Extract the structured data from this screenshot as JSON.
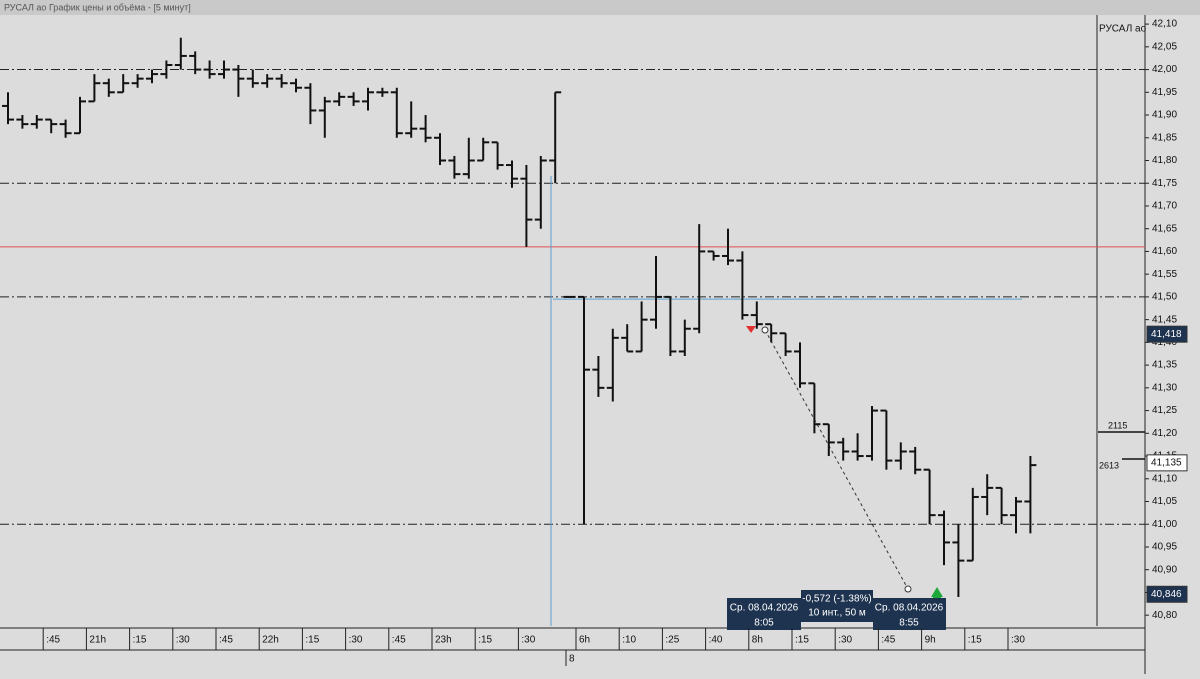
{
  "window_title": "РУСАЛ ао График цены и объёма - [5 минут]",
  "chart_data": {
    "type": "ohlc",
    "legend": "РУСАЛ ао",
    "color": "#111111",
    "categories": [
      null,
      null,
      null,
      ":45",
      null,
      null,
      "21h",
      null,
      null,
      ":15",
      null,
      null,
      ":30",
      null,
      null,
      ":45",
      null,
      null,
      "22h",
      null,
      null,
      ":15",
      null,
      null,
      ":30",
      null,
      null,
      ":45",
      null,
      null,
      "23h",
      null,
      null,
      ":15",
      null,
      null,
      ":30",
      null,
      null,
      null,
      "6h",
      null,
      null,
      ":10",
      null,
      null,
      ":25",
      null,
      null,
      ":40",
      null,
      null,
      "8h",
      null,
      null,
      ":15",
      null,
      null,
      ":30",
      null,
      null,
      ":45",
      null,
      null,
      "9h",
      null,
      null,
      ":15",
      null,
      null,
      ":30",
      null
    ],
    "date_label": "8",
    "open": [
      41.92,
      41.89,
      41.88,
      41.89,
      41.88,
      41.86,
      41.93,
      41.97,
      41.95,
      41.97,
      41.98,
      41.99,
      42.01,
      42.03,
      42.0,
      41.99,
      42.0,
      41.98,
      41.97,
      41.98,
      41.97,
      41.96,
      41.91,
      41.93,
      41.94,
      41.93,
      41.95,
      41.95,
      41.86,
      41.87,
      41.85,
      41.8,
      41.77,
      41.8,
      41.84,
      41.79,
      41.76,
      41.67,
      41.8,
      41.5,
      41.5,
      41.34,
      41.3,
      41.41,
      41.38,
      41.45,
      41.5,
      41.38,
      41.43,
      41.6,
      41.59,
      41.58,
      41.46,
      41.44,
      41.42,
      41.38,
      41.31,
      41.22,
      41.18,
      41.16,
      41.15,
      41.25,
      41.14,
      41.16,
      41.12,
      41.02,
      40.96,
      40.92,
      41.06,
      41.08,
      41.02,
      41.05
    ],
    "high": [
      41.95,
      41.9,
      41.9,
      41.89,
      41.89,
      41.94,
      41.99,
      41.98,
      41.99,
      41.99,
      42.0,
      42.02,
      42.07,
      42.04,
      42.02,
      42.02,
      42.01,
      42.0,
      41.99,
      41.99,
      41.98,
      41.97,
      41.94,
      41.95,
      41.95,
      41.96,
      41.96,
      41.96,
      41.93,
      41.9,
      41.86,
      41.81,
      41.85,
      41.85,
      41.84,
      41.8,
      41.79,
      41.81,
      41.95,
      41.5,
      41.5,
      41.37,
      41.43,
      41.44,
      41.49,
      41.59,
      41.5,
      41.45,
      41.66,
      41.6,
      41.65,
      41.6,
      41.49,
      41.44,
      41.42,
      41.4,
      41.31,
      41.22,
      41.19,
      41.2,
      41.26,
      41.25,
      41.18,
      41.17,
      41.12,
      41.03,
      41.0,
      41.08,
      41.11,
      41.08,
      41.06,
      41.15
    ],
    "low": [
      41.88,
      41.87,
      41.87,
      41.86,
      41.85,
      41.86,
      41.93,
      41.94,
      41.95,
      41.96,
      41.97,
      41.98,
      42.0,
      41.99,
      41.98,
      41.98,
      41.94,
      41.96,
      41.96,
      41.96,
      41.95,
      41.88,
      41.85,
      41.92,
      41.92,
      41.91,
      41.94,
      41.85,
      41.85,
      41.84,
      41.79,
      41.76,
      41.76,
      41.8,
      41.78,
      41.74,
      41.61,
      41.65,
      41.75,
      41.5,
      41.0,
      41.28,
      41.27,
      41.38,
      41.38,
      41.43,
      41.37,
      41.37,
      41.42,
      41.58,
      41.57,
      41.45,
      41.43,
      41.4,
      41.37,
      41.3,
      41.2,
      41.15,
      41.14,
      41.14,
      41.14,
      41.12,
      41.12,
      41.11,
      41.0,
      40.91,
      40.84,
      40.92,
      41.02,
      41.0,
      40.98,
      40.98
    ],
    "close": [
      41.89,
      41.88,
      41.89,
      41.88,
      41.86,
      41.93,
      41.97,
      41.95,
      41.97,
      41.98,
      41.99,
      42.01,
      42.03,
      42.0,
      41.99,
      42.0,
      41.98,
      41.97,
      41.98,
      41.97,
      41.96,
      41.91,
      41.93,
      41.94,
      41.93,
      41.95,
      41.95,
      41.86,
      41.87,
      41.85,
      41.8,
      41.77,
      41.8,
      41.84,
      41.79,
      41.76,
      41.67,
      41.8,
      41.95,
      41.5,
      41.34,
      41.3,
      41.41,
      41.38,
      41.45,
      41.5,
      41.38,
      41.43,
      41.6,
      41.59,
      41.58,
      41.46,
      41.44,
      41.42,
      41.38,
      41.31,
      41.22,
      41.18,
      41.16,
      41.15,
      41.25,
      41.14,
      41.16,
      41.12,
      41.02,
      40.96,
      40.92,
      41.06,
      41.08,
      41.02,
      41.05,
      41.13
    ],
    "ylim": [
      40.785,
      42.12
    ],
    "yticks": [
      {
        "value": 42.1,
        "label": "42,10"
      },
      {
        "value": 42.05,
        "label": "42,05"
      },
      {
        "value": 42.0,
        "label": "42,00"
      },
      {
        "value": 41.95,
        "label": "41,95"
      },
      {
        "value": 41.9,
        "label": "41,90"
      },
      {
        "value": 41.85,
        "label": "41,85"
      },
      {
        "value": 41.8,
        "label": "41,80"
      },
      {
        "value": 41.75,
        "label": "41,75"
      },
      {
        "value": 41.7,
        "label": "41,70"
      },
      {
        "value": 41.65,
        "label": "41,65"
      },
      {
        "value": 41.6,
        "label": "41,60"
      },
      {
        "value": 41.55,
        "label": "41,55"
      },
      {
        "value": 41.5,
        "label": "41,50"
      },
      {
        "value": 41.45,
        "label": "41,45"
      },
      {
        "value": 41.4,
        "label": "41,40"
      },
      {
        "value": 41.35,
        "label": "41,35"
      },
      {
        "value": 41.3,
        "label": "41,30"
      },
      {
        "value": 41.25,
        "label": "41,25"
      },
      {
        "value": 41.2,
        "label": "41,20"
      },
      {
        "value": 41.15,
        "label": "41,15"
      },
      {
        "value": 41.1,
        "label": "41,10"
      },
      {
        "value": 41.05,
        "label": "41,05"
      },
      {
        "value": 41.0,
        "label": "41,00"
      },
      {
        "value": 40.95,
        "label": "40,95"
      },
      {
        "value": 40.9,
        "label": "40,90"
      },
      {
        "value": 40.85,
        "label": "40,85"
      },
      {
        "value": 40.8,
        "label": "40,80"
      }
    ],
    "levels": [
      42.0,
      41.75,
      41.5,
      41.0
    ],
    "red_level": 41.61,
    "blue_level": 41.495,
    "price_tags": [
      {
        "value": 41.418,
        "label": "41,418"
      },
      {
        "value": 41.135,
        "label": "41,135"
      },
      {
        "value": 40.846,
        "label": "40,846"
      }
    ],
    "volume_labels": [
      2115,
      2613
    ],
    "tooltips": [
      [
        "Ср. 08.04.2026",
        "8:05"
      ],
      [
        "-0,572 (-1.38%)",
        "10 инт., 50 м"
      ],
      [
        "Ср. 08.04.2026",
        "8:55"
      ]
    ]
  }
}
